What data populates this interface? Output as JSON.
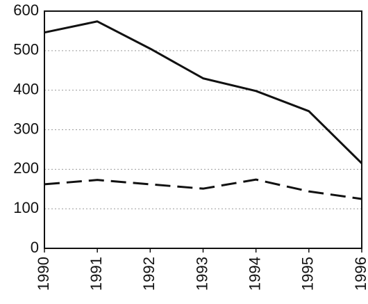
{
  "chart_data": {
    "type": "line",
    "x": [
      1990,
      1991,
      1992,
      1993,
      1994,
      1995,
      1996
    ],
    "xlim": [
      1990,
      1996
    ],
    "xticks": [
      1990,
      1991,
      1992,
      1993,
      1994,
      1995,
      1996
    ],
    "ylim": [
      0,
      600
    ],
    "yticks": [
      0,
      100,
      200,
      300,
      400,
      500,
      600
    ],
    "grid": true,
    "series": [
      {
        "color": "#111111",
        "dash": "solid",
        "values": [
          546,
          574,
          505,
          430,
          398,
          347,
          215
        ]
      },
      {
        "color": "#111111",
        "dash": "dashed",
        "values": [
          162,
          173,
          162,
          151,
          174,
          144,
          125
        ]
      }
    ]
  }
}
